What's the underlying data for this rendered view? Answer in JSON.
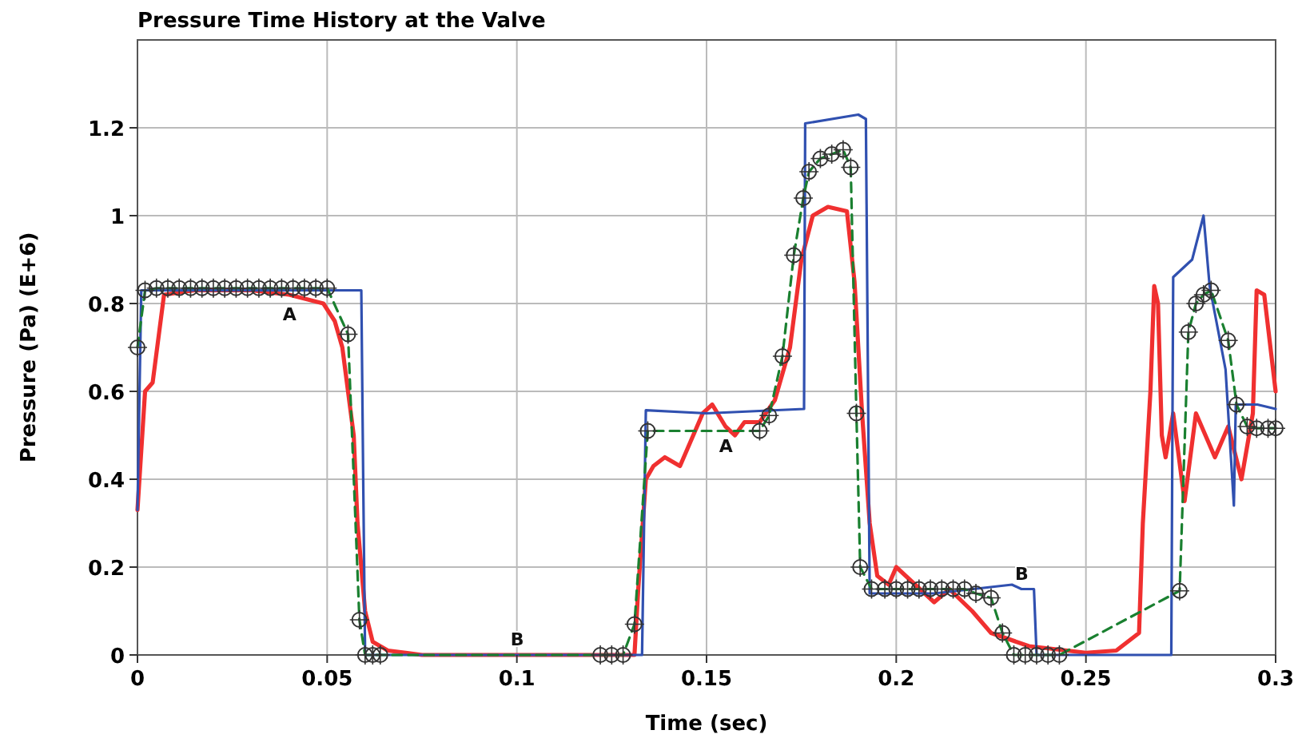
{
  "chart_data": {
    "type": "line",
    "title": "Pressure Time History at the Valve",
    "xlabel": "Time (sec)",
    "ylabel": "Pressure (Pa) (E+6)",
    "xlim": [
      0,
      0.3
    ],
    "ylim": [
      0,
      1.4
    ],
    "xticks": [
      0,
      0.05,
      0.1,
      0.15,
      0.2,
      0.25,
      0.3
    ],
    "yticks": [
      0,
      0.2,
      0.4,
      0.6,
      0.8,
      1,
      1.2
    ],
    "grid": true,
    "series": [
      {
        "name": "A",
        "color": "#f03030",
        "line_style": "solid",
        "marker": "none",
        "x": [
          0,
          0.002,
          0.004,
          0.007,
          0.015,
          0.03,
          0.04,
          0.049,
          0.052,
          0.054,
          0.057,
          0.058,
          0.06,
          0.062,
          0.066,
          0.075,
          0.1,
          0.131,
          0.132,
          0.134,
          0.136,
          0.139,
          0.143,
          0.145,
          0.149,
          0.1515,
          0.155,
          0.1575,
          0.16,
          0.164,
          0.168,
          0.172,
          0.175,
          0.178,
          0.182,
          0.187,
          0.189,
          0.191,
          0.193,
          0.195,
          0.198,
          0.2,
          0.21,
          0.214,
          0.22,
          0.225,
          0.235,
          0.25,
          0.258,
          0.264,
          0.265,
          0.267,
          0.268,
          0.269,
          0.27,
          0.271,
          0.273,
          0.276,
          0.279,
          0.284,
          0.2875,
          0.291,
          0.294,
          0.295,
          0.297,
          0.3
        ],
        "values": [
          0.33,
          0.6,
          0.62,
          0.82,
          0.83,
          0.83,
          0.82,
          0.8,
          0.76,
          0.7,
          0.5,
          0.3,
          0.1,
          0.03,
          0.01,
          0,
          0,
          0,
          0.15,
          0.4,
          0.43,
          0.45,
          0.43,
          0.47,
          0.55,
          0.57,
          0.52,
          0.5,
          0.53,
          0.53,
          0.58,
          0.7,
          0.9,
          1,
          1.02,
          1.01,
          0.85,
          0.55,
          0.3,
          0.18,
          0.16,
          0.2,
          0.12,
          0.15,
          0.1,
          0.05,
          0.02,
          0.005,
          0.01,
          0.05,
          0.3,
          0.6,
          0.84,
          0.8,
          0.5,
          0.45,
          0.55,
          0.35,
          0.55,
          0.45,
          0.52,
          0.4,
          0.55,
          0.83,
          0.82,
          0.6
        ]
      },
      {
        "name": "B",
        "color": "#3050b0",
        "line_style": "solid",
        "marker": "none",
        "x": [
          0,
          0.001,
          0.03,
          0.059,
          0.0595,
          0.06,
          0.1,
          0.133,
          0.134,
          0.15,
          0.1757,
          0.176,
          0.19,
          0.192,
          0.193,
          0.21,
          0.2305,
          0.233,
          0.2363,
          0.237,
          0.25,
          0.2725,
          0.273,
          0.278,
          0.281,
          0.2826,
          0.2868,
          0.289,
          0.2895,
          0.2952,
          0.3
        ],
        "values": [
          0.33,
          0.83,
          0.83,
          0.83,
          0.4,
          0,
          0,
          0,
          0.557,
          0.55,
          0.56,
          1.21,
          1.23,
          1.22,
          0.14,
          0.14,
          0.16,
          0.15,
          0.15,
          0,
          0,
          0,
          0.86,
          0.9,
          1.0,
          0.84,
          0.65,
          0.34,
          0.57,
          0.57,
          0.56
        ]
      },
      {
        "color": "#1a8030",
        "line_style": "dashed",
        "marker": "circle",
        "x": [
          0,
          0.002,
          0.005,
          0.008,
          0.011,
          0.014,
          0.017,
          0.02,
          0.023,
          0.026,
          0.029,
          0.032,
          0.035,
          0.038,
          0.041,
          0.044,
          0.047,
          0.05,
          0.0555,
          0.0585,
          0.06,
          0.062,
          0.064,
          0.122,
          0.125,
          0.128,
          0.131,
          0.1345,
          0.164,
          0.1665,
          0.17,
          0.173,
          0.1755,
          0.177,
          0.18,
          0.183,
          0.186,
          0.188,
          0.1895,
          0.1905,
          0.1935,
          0.197,
          0.2,
          0.203,
          0.206,
          0.209,
          0.212,
          0.215,
          0.218,
          0.221,
          0.225,
          0.228,
          0.231,
          0.234,
          0.237,
          0.24,
          0.243,
          0.2747,
          0.277,
          0.279,
          0.281,
          0.283,
          0.2875,
          0.2897,
          0.2925,
          0.295,
          0.298,
          0.3
        ],
        "values": [
          0.7,
          0.83,
          0.835,
          0.835,
          0.835,
          0.835,
          0.835,
          0.835,
          0.835,
          0.835,
          0.835,
          0.835,
          0.835,
          0.835,
          0.835,
          0.835,
          0.835,
          0.835,
          0.73,
          0.08,
          0,
          0,
          0,
          0,
          0,
          0,
          0.07,
          0.51,
          0.51,
          0.545,
          0.68,
          0.91,
          1.04,
          1.1,
          1.13,
          1.14,
          1.15,
          1.11,
          0.55,
          0.2,
          0.15,
          0.15,
          0.15,
          0.15,
          0.15,
          0.15,
          0.15,
          0.15,
          0.15,
          0.14,
          0.13,
          0.05,
          0,
          0,
          0,
          0,
          0,
          0.146,
          0.735,
          0.8,
          0.82,
          0.83,
          0.716,
          0.57,
          0.52,
          0.516,
          0.516,
          0.516
        ]
      }
    ]
  }
}
